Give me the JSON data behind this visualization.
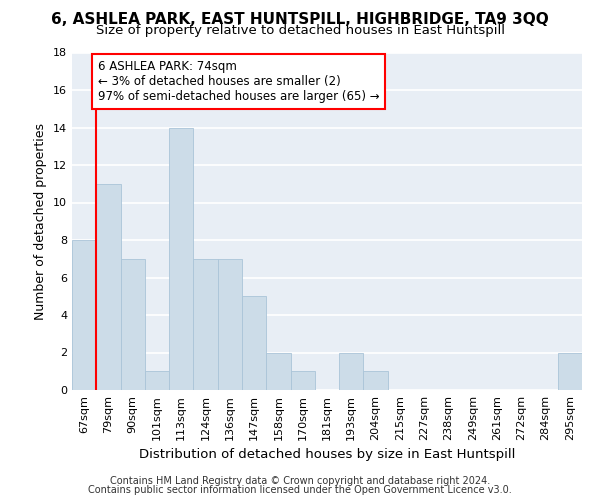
{
  "title": "6, ASHLEA PARK, EAST HUNTSPILL, HIGHBRIDGE, TA9 3QQ",
  "subtitle": "Size of property relative to detached houses in East Huntspill",
  "xlabel": "Distribution of detached houses by size in East Huntspill",
  "ylabel": "Number of detached properties",
  "footnote1": "Contains HM Land Registry data © Crown copyright and database right 2024.",
  "footnote2": "Contains public sector information licensed under the Open Government Licence v3.0.",
  "bar_labels": [
    "67sqm",
    "79sqm",
    "90sqm",
    "101sqm",
    "113sqm",
    "124sqm",
    "136sqm",
    "147sqm",
    "158sqm",
    "170sqm",
    "181sqm",
    "193sqm",
    "204sqm",
    "215sqm",
    "227sqm",
    "238sqm",
    "249sqm",
    "261sqm",
    "272sqm",
    "284sqm",
    "295sqm"
  ],
  "bar_values": [
    8,
    11,
    7,
    1,
    14,
    7,
    7,
    5,
    2,
    1,
    0,
    2,
    1,
    0,
    0,
    0,
    0,
    0,
    0,
    0,
    2
  ],
  "bar_color": "#ccdce8",
  "bar_edge_color": "#aac4d8",
  "annotation_box_text": "6 ASHLEA PARK: 74sqm\n← 3% of detached houses are smaller (2)\n97% of semi-detached houses are larger (65) →",
  "red_line_x": 0.5,
  "ylim": [
    0,
    18
  ],
  "yticks": [
    0,
    2,
    4,
    6,
    8,
    10,
    12,
    14,
    16,
    18
  ],
  "fig_bg_color": "#ffffff",
  "plot_bg_color": "#e8eef5",
  "grid_color": "#ffffff",
  "title_fontsize": 11,
  "subtitle_fontsize": 9.5,
  "axis_label_fontsize": 9,
  "tick_fontsize": 8,
  "annotation_fontsize": 8.5,
  "footnote_fontsize": 7
}
